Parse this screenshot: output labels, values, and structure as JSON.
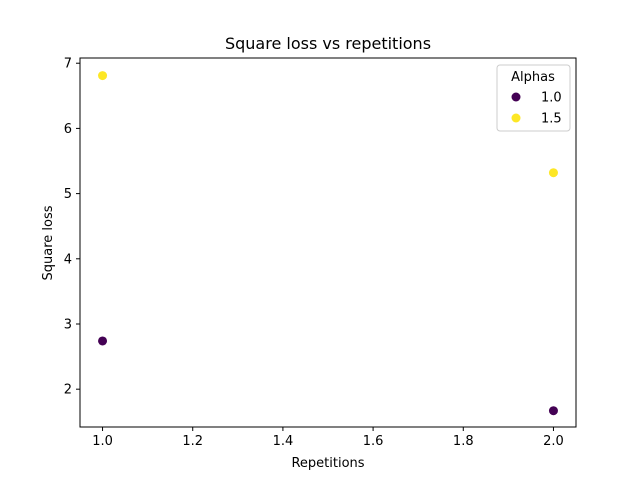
{
  "chart_data": {
    "type": "scatter",
    "title": "Square loss vs repetitions",
    "xlabel": "Repetitions",
    "ylabel": "Square loss",
    "xlim": [
      0.95,
      2.05
    ],
    "ylim": [
      1.42,
      7.08
    ],
    "xticks": [
      1.0,
      1.2,
      1.4,
      1.6,
      1.8,
      2.0
    ],
    "xtick_labels": [
      "1.0",
      "1.2",
      "1.4",
      "1.6",
      "1.8",
      "2.0"
    ],
    "yticks": [
      2,
      3,
      4,
      5,
      6,
      7
    ],
    "ytick_labels": [
      "2",
      "3",
      "4",
      "5",
      "6",
      "7"
    ],
    "grid": false,
    "legend": {
      "title": "Alphas",
      "placement": "top-right"
    },
    "series": [
      {
        "name": "1.0",
        "color": "#440154",
        "x": [
          1.0,
          2.0
        ],
        "y": [
          2.74,
          1.67
        ]
      },
      {
        "name": "1.5",
        "color": "#fde725",
        "x": [
          1.0,
          2.0
        ],
        "y": [
          6.81,
          5.32
        ]
      }
    ]
  }
}
